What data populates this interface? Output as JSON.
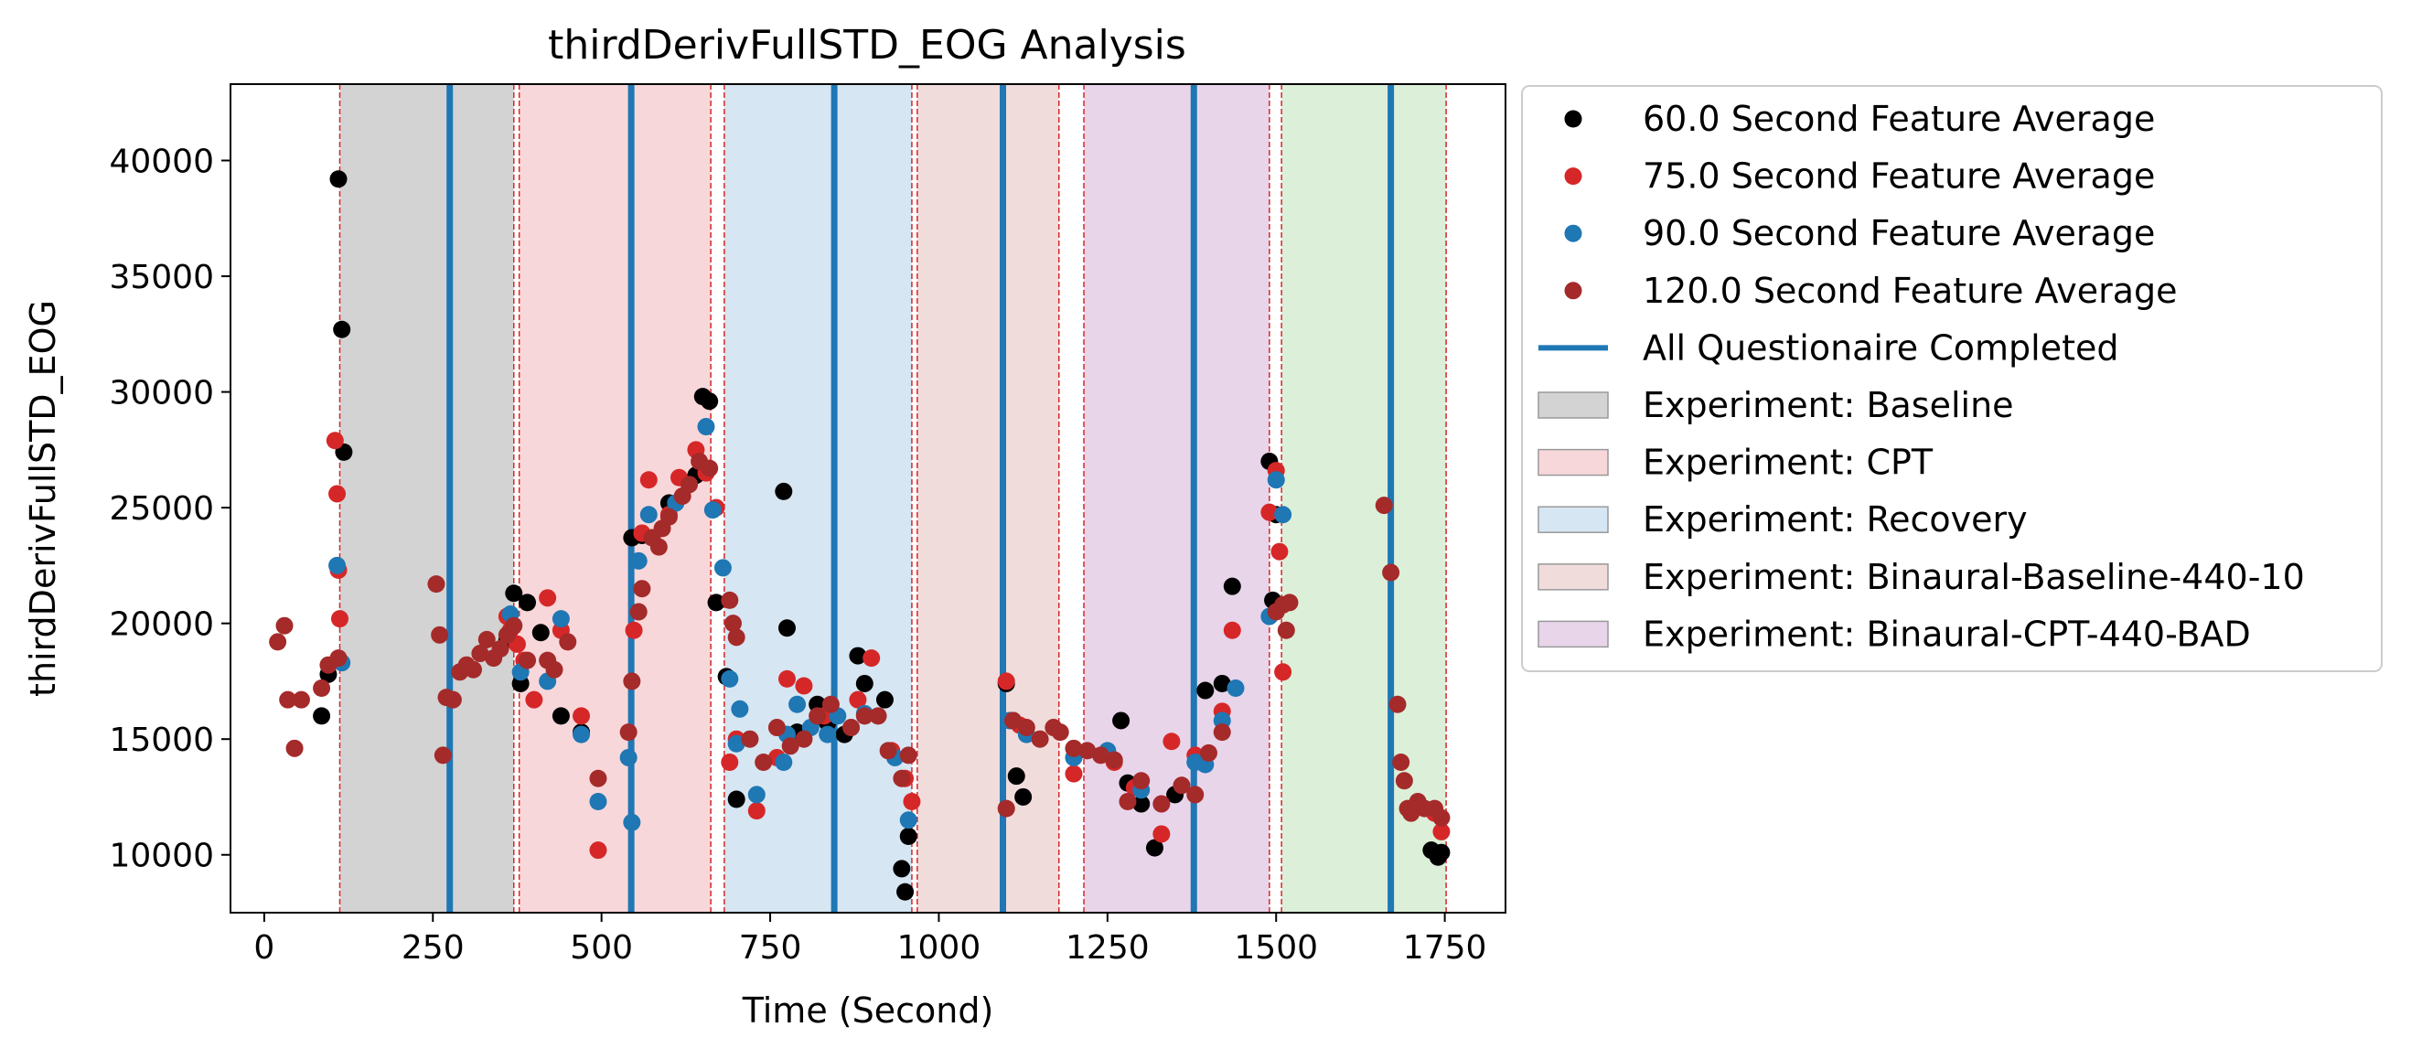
{
  "chart_data": {
    "type": "scatter",
    "title": "thirdDerivFullSTD_EOG Analysis",
    "xlabel": "Time (Second)",
    "ylabel": "thirdDerivFullSTD_EOG",
    "xlim": [
      -50,
      1840
    ],
    "ylim": [
      7500,
      43300
    ],
    "xticks": [
      0,
      250,
      500,
      750,
      1000,
      1250,
      1500,
      1750
    ],
    "yticks": [
      10000,
      15000,
      20000,
      25000,
      30000,
      35000,
      40000
    ],
    "grid": false,
    "legend_position": "outside-right",
    "phases": [
      {
        "name": "Experiment: Baseline",
        "start": 112,
        "end": 370,
        "color": "#d3d3d3"
      },
      {
        "name": "Experiment: CPT",
        "start": 378,
        "end": 662,
        "color": "#f8d7da"
      },
      {
        "name": "Experiment: Recovery",
        "start": 682,
        "end": 960,
        "color": "#d6e6f2"
      },
      {
        "name": "Experiment: Binaural-Baseline-440-10",
        "start": 968,
        "end": 1178,
        "color": "#f1dcdc"
      },
      {
        "name": "Experiment: Binaural-CPT-440-BAD",
        "start": 1215,
        "end": 1490,
        "color": "#e8d5ea"
      },
      {
        "name": "",
        "start": 1508,
        "end": 1752,
        "color": "#dcefd9"
      }
    ],
    "phase_boundaries": [
      112,
      370,
      378,
      662,
      682,
      960,
      968,
      1178,
      1215,
      1490,
      1508,
      1752
    ],
    "questionnaire_lines": [
      275,
      544,
      845,
      1095,
      1378,
      1670
    ],
    "series": [
      {
        "name": "60.0 Second Feature Average",
        "color": "#000000",
        "points": [
          [
            85,
            16000
          ],
          [
            95,
            17800
          ],
          [
            110,
            39200
          ],
          [
            115,
            32700
          ],
          [
            118,
            27400
          ],
          [
            360,
            19300
          ],
          [
            370,
            21300
          ],
          [
            380,
            17400
          ],
          [
            390,
            20900
          ],
          [
            410,
            19600
          ],
          [
            440,
            16000
          ],
          [
            470,
            15300
          ],
          [
            545,
            23700
          ],
          [
            560,
            23800
          ],
          [
            600,
            25200
          ],
          [
            640,
            26400
          ],
          [
            650,
            29800
          ],
          [
            660,
            29600
          ],
          [
            670,
            20900
          ],
          [
            685,
            17700
          ],
          [
            700,
            12400
          ],
          [
            770,
            25700
          ],
          [
            775,
            19800
          ],
          [
            790,
            15300
          ],
          [
            820,
            16500
          ],
          [
            835,
            15700
          ],
          [
            860,
            15200
          ],
          [
            880,
            18600
          ],
          [
            890,
            17400
          ],
          [
            920,
            16700
          ],
          [
            945,
            9400
          ],
          [
            950,
            8400
          ],
          [
            955,
            10800
          ],
          [
            1100,
            17400
          ],
          [
            1110,
            15800
          ],
          [
            1115,
            13400
          ],
          [
            1125,
            12500
          ],
          [
            1270,
            15800
          ],
          [
            1280,
            13100
          ],
          [
            1300,
            12200
          ],
          [
            1320,
            10300
          ],
          [
            1350,
            12600
          ],
          [
            1395,
            17100
          ],
          [
            1420,
            17400
          ],
          [
            1435,
            21600
          ],
          [
            1490,
            27000
          ],
          [
            1495,
            21000
          ],
          [
            1500,
            24700
          ],
          [
            1730,
            10200
          ],
          [
            1740,
            9900
          ],
          [
            1745,
            10100
          ]
        ]
      },
      {
        "name": "75.0 Second Feature Average",
        "color": "#d62728",
        "points": [
          [
            105,
            27900
          ],
          [
            108,
            25600
          ],
          [
            110,
            22300
          ],
          [
            112,
            20200
          ],
          [
            360,
            20300
          ],
          [
            365,
            19700
          ],
          [
            375,
            19100
          ],
          [
            385,
            18400
          ],
          [
            400,
            16700
          ],
          [
            420,
            21100
          ],
          [
            440,
            19700
          ],
          [
            470,
            16000
          ],
          [
            495,
            10200
          ],
          [
            548,
            19700
          ],
          [
            560,
            23900
          ],
          [
            570,
            26200
          ],
          [
            600,
            24700
          ],
          [
            615,
            26300
          ],
          [
            640,
            27500
          ],
          [
            655,
            26500
          ],
          [
            670,
            25000
          ],
          [
            690,
            14000
          ],
          [
            700,
            15000
          ],
          [
            730,
            11900
          ],
          [
            760,
            14200
          ],
          [
            775,
            17600
          ],
          [
            800,
            17300
          ],
          [
            830,
            16000
          ],
          [
            880,
            16700
          ],
          [
            900,
            18500
          ],
          [
            930,
            14500
          ],
          [
            950,
            13300
          ],
          [
            960,
            12300
          ],
          [
            1100,
            17500
          ],
          [
            1120,
            15600
          ],
          [
            1200,
            13500
          ],
          [
            1260,
            14000
          ],
          [
            1290,
            12900
          ],
          [
            1330,
            10900
          ],
          [
            1345,
            14900
          ],
          [
            1380,
            14300
          ],
          [
            1420,
            16200
          ],
          [
            1435,
            19700
          ],
          [
            1490,
            24800
          ],
          [
            1500,
            26600
          ],
          [
            1505,
            23100
          ],
          [
            1510,
            17900
          ],
          [
            1735,
            11800
          ],
          [
            1745,
            11000
          ]
        ]
      },
      {
        "name": "90.0 Second Feature Average",
        "color": "#1f77b4",
        "points": [
          [
            108,
            22500
          ],
          [
            115,
            18300
          ],
          [
            365,
            20400
          ],
          [
            380,
            17900
          ],
          [
            420,
            17500
          ],
          [
            440,
            20200
          ],
          [
            470,
            15200
          ],
          [
            495,
            12300
          ],
          [
            540,
            14200
          ],
          [
            545,
            11400
          ],
          [
            555,
            22700
          ],
          [
            570,
            24700
          ],
          [
            610,
            25200
          ],
          [
            655,
            28500
          ],
          [
            665,
            24900
          ],
          [
            680,
            22400
          ],
          [
            690,
            17600
          ],
          [
            700,
            14800
          ],
          [
            705,
            16300
          ],
          [
            730,
            12600
          ],
          [
            770,
            14000
          ],
          [
            775,
            15200
          ],
          [
            790,
            16500
          ],
          [
            810,
            15500
          ],
          [
            835,
            15200
          ],
          [
            850,
            16000
          ],
          [
            890,
            16100
          ],
          [
            935,
            14200
          ],
          [
            955,
            11500
          ],
          [
            1105,
            15800
          ],
          [
            1130,
            15200
          ],
          [
            1200,
            14200
          ],
          [
            1250,
            14500
          ],
          [
            1300,
            12800
          ],
          [
            1380,
            14000
          ],
          [
            1395,
            13900
          ],
          [
            1420,
            15800
          ],
          [
            1440,
            17200
          ],
          [
            1490,
            20300
          ],
          [
            1500,
            26200
          ],
          [
            1510,
            24700
          ]
        ]
      },
      {
        "name": "120.0 Second Feature Average",
        "color": "#a52a2a",
        "points": [
          [
            20,
            19200
          ],
          [
            30,
            19900
          ],
          [
            35,
            16700
          ],
          [
            45,
            14600
          ],
          [
            55,
            16700
          ],
          [
            85,
            17200
          ],
          [
            95,
            18200
          ],
          [
            110,
            18500
          ],
          [
            255,
            21700
          ],
          [
            260,
            19500
          ],
          [
            265,
            14300
          ],
          [
            270,
            16800
          ],
          [
            280,
            16700
          ],
          [
            290,
            17900
          ],
          [
            300,
            18200
          ],
          [
            310,
            18000
          ],
          [
            320,
            18700
          ],
          [
            330,
            19300
          ],
          [
            340,
            18500
          ],
          [
            350,
            18900
          ],
          [
            360,
            19500
          ],
          [
            370,
            19900
          ],
          [
            390,
            18400
          ],
          [
            420,
            18400
          ],
          [
            430,
            18000
          ],
          [
            450,
            19200
          ],
          [
            495,
            13300
          ],
          [
            540,
            15300
          ],
          [
            545,
            17500
          ],
          [
            555,
            20500
          ],
          [
            560,
            21500
          ],
          [
            575,
            23700
          ],
          [
            585,
            23300
          ],
          [
            590,
            24100
          ],
          [
            600,
            24600
          ],
          [
            620,
            25500
          ],
          [
            630,
            26000
          ],
          [
            645,
            27000
          ],
          [
            660,
            26700
          ],
          [
            690,
            21000
          ],
          [
            695,
            20000
          ],
          [
            700,
            19400
          ],
          [
            720,
            15000
          ],
          [
            740,
            14000
          ],
          [
            760,
            15500
          ],
          [
            780,
            14700
          ],
          [
            800,
            15000
          ],
          [
            820,
            16000
          ],
          [
            840,
            16500
          ],
          [
            870,
            15500
          ],
          [
            890,
            16000
          ],
          [
            910,
            16000
          ],
          [
            925,
            14500
          ],
          [
            945,
            13300
          ],
          [
            955,
            14300
          ],
          [
            1100,
            12000
          ],
          [
            1110,
            15800
          ],
          [
            1130,
            15500
          ],
          [
            1150,
            15000
          ],
          [
            1170,
            15500
          ],
          [
            1180,
            15300
          ],
          [
            1200,
            14600
          ],
          [
            1220,
            14500
          ],
          [
            1240,
            14300
          ],
          [
            1260,
            14100
          ],
          [
            1280,
            12300
          ],
          [
            1300,
            13200
          ],
          [
            1330,
            12200
          ],
          [
            1360,
            13000
          ],
          [
            1380,
            12600
          ],
          [
            1400,
            14400
          ],
          [
            1420,
            15300
          ],
          [
            1500,
            20500
          ],
          [
            1510,
            20800
          ],
          [
            1515,
            19700
          ],
          [
            1520,
            20900
          ],
          [
            1660,
            25100
          ],
          [
            1670,
            22200
          ],
          [
            1680,
            16500
          ],
          [
            1685,
            14000
          ],
          [
            1690,
            13200
          ],
          [
            1695,
            12000
          ],
          [
            1700,
            11800
          ],
          [
            1710,
            12300
          ],
          [
            1720,
            12000
          ],
          [
            1735,
            12000
          ],
          [
            1745,
            11600
          ]
        ]
      }
    ],
    "questionnaire_label": "All Questionaire Completed"
  },
  "legend": {
    "items": [
      {
        "label": "60.0 Second Feature Average",
        "kind": "marker",
        "color": "#000000"
      },
      {
        "label": "75.0 Second Feature Average",
        "kind": "marker",
        "color": "#d62728"
      },
      {
        "label": "90.0 Second Feature Average",
        "kind": "marker",
        "color": "#1f77b4"
      },
      {
        "label": "120.0 Second Feature Average",
        "kind": "marker",
        "color": "#a52a2a"
      },
      {
        "label": "All Questionaire Completed",
        "kind": "line",
        "color": "#1f77b4"
      },
      {
        "label": "Experiment: Baseline",
        "kind": "patch",
        "color": "#d3d3d3"
      },
      {
        "label": "Experiment: CPT",
        "kind": "patch",
        "color": "#f8d7da"
      },
      {
        "label": "Experiment: Recovery",
        "kind": "patch",
        "color": "#d6e6f2"
      },
      {
        "label": "Experiment: Binaural-Baseline-440-10",
        "kind": "patch",
        "color": "#f1dcdc"
      },
      {
        "label": "Experiment: Binaural-CPT-440-BAD",
        "kind": "patch",
        "color": "#e8d5ea"
      }
    ]
  }
}
